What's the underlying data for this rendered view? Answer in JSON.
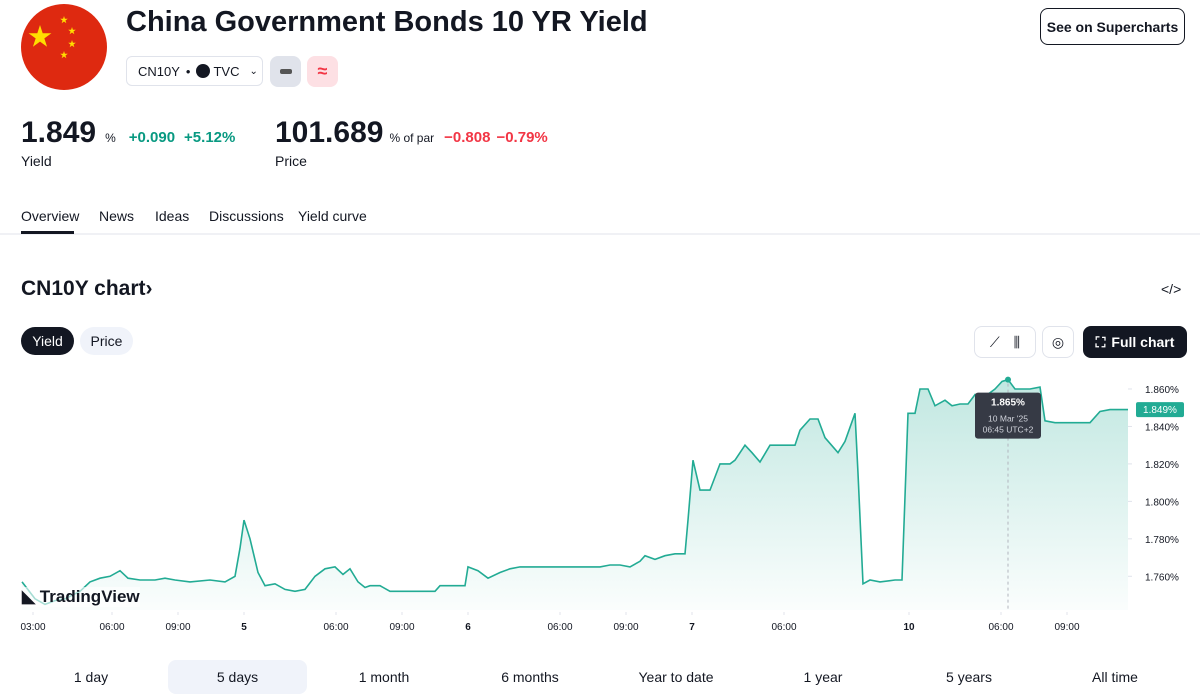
{
  "header": {
    "title": "China Government Bonds 10 YR Yield",
    "symbol": "CN10Y",
    "separator": "•",
    "exchange": "TVC",
    "button": "See on Supercharts"
  },
  "quotes": [
    {
      "value": "1.849",
      "unit": "%",
      "change": "+0.090",
      "change_percent": "+5.12%",
      "label": "Yield"
    },
    {
      "value": "101.689",
      "unit": "% of par",
      "change": "−0.808",
      "change_percent": "−0.79%",
      "label": "Price"
    }
  ],
  "tabs": [
    "Overview",
    "News",
    "Ideas",
    "Discussions",
    "Yield curve"
  ],
  "chart_section": {
    "title": "CN10Y chart",
    "arrow": "›",
    "toggles": [
      "Yield",
      "Price"
    ],
    "full_chart": "Full chart",
    "watermark": "TradingView"
  },
  "chart_data": {
    "type": "line",
    "color": "#22ab94",
    "x": [
      0,
      1.3,
      2.3,
      3.3,
      4.3,
      5.8,
      6.8,
      7.8,
      8.8,
      9.8,
      10.6,
      11.8,
      13.3,
      14.3,
      15.3,
      16.8,
      18.8,
      20.3,
      21.3,
      21.8,
      22.2,
      22.8,
      23.6,
      24.3,
      25.3,
      26.3,
      27.3,
      28.3,
      29.3,
      30.3,
      31.3,
      32.1,
      32.8,
      33.6,
      34.3,
      34.8,
      35.8,
      36.8,
      37.8,
      39.8,
      41.3,
      41.8,
      43.3,
      44.3,
      44.6,
      45.6,
      46.6,
      47.8,
      48.8,
      49.8,
      51.8,
      53.8,
      55.8,
      57.8,
      58.8,
      59.8,
      60.8,
      61.8,
      62.3,
      63.3,
      64.3,
      65.3,
      66.3,
      66.6,
      67.1,
      67.8,
      68.8,
      69.8,
      70.8,
      71.3,
      72.3,
      73,
      73.8,
      74.8,
      75.8,
      77.3,
      77.8,
      78.8,
      79.6,
      80.3,
      81.6,
      82.3,
      83.3,
      83.6,
      84.1,
      84.8,
      85.8,
      87.3,
      88,
      88.6,
      89.3,
      89.8,
      90.6,
      91.3,
      92.3,
      93,
      93.8,
      94.6,
      95.3,
      95.8,
      96.3,
      97.3,
      98,
      98.6,
      99.3,
      100.8,
      101.8,
      102.3,
      103.3,
      105.3,
      106.8,
      107.8,
      108.8,
      110.6
    ],
    "values": [
      1.757,
      1.748,
      1.745,
      1.747,
      1.748,
      1.752,
      1.757,
      1.759,
      1.76,
      1.763,
      1.759,
      1.758,
      1.758,
      1.759,
      1.758,
      1.757,
      1.758,
      1.757,
      1.76,
      1.775,
      1.79,
      1.78,
      1.762,
      1.755,
      1.756,
      1.753,
      1.752,
      1.753,
      1.76,
      1.764,
      1.765,
      1.761,
      1.764,
      1.757,
      1.754,
      1.755,
      1.755,
      1.752,
      1.752,
      1.752,
      1.752,
      1.755,
      1.755,
      1.755,
      1.765,
      1.763,
      1.759,
      1.762,
      1.764,
      1.765,
      1.765,
      1.765,
      1.765,
      1.765,
      1.766,
      1.766,
      1.765,
      1.768,
      1.771,
      1.769,
      1.771,
      1.772,
      1.772,
      1.79,
      1.822,
      1.806,
      1.806,
      1.82,
      1.82,
      1.822,
      1.83,
      1.826,
      1.821,
      1.83,
      1.83,
      1.83,
      1.838,
      1.844,
      1.844,
      1.834,
      1.826,
      1.832,
      1.847,
      1.815,
      1.756,
      1.758,
      1.757,
      1.758,
      1.758,
      1.847,
      1.847,
      1.86,
      1.86,
      1.851,
      1.854,
      1.851,
      1.852,
      1.852,
      1.857,
      1.853,
      1.856,
      1.86,
      1.864,
      1.865,
      1.86,
      1.86,
      1.861,
      1.843,
      1.842,
      1.842,
      1.842,
      1.848,
      1.849,
      1.849
    ],
    "xlim": [
      0,
      110.6
    ],
    "ylim": [
      1.742,
      1.868
    ],
    "xticks": [
      {
        "value": 1.1,
        "label": "03:00"
      },
      {
        "value": 9,
        "label": "06:00"
      },
      {
        "value": 15.6,
        "label": "09:00"
      },
      {
        "value": 22.2,
        "label": "5"
      },
      {
        "value": 31.4,
        "label": "06:00"
      },
      {
        "value": 38,
        "label": "09:00"
      },
      {
        "value": 44.6,
        "label": "6"
      },
      {
        "value": 53.8,
        "label": "06:00"
      },
      {
        "value": 60.4,
        "label": "09:00"
      },
      {
        "value": 67,
        "label": "7"
      },
      {
        "value": 76.2,
        "label": "06:00"
      },
      {
        "value": 88.7,
        "label": "10"
      },
      {
        "value": 97.9,
        "label": "06:00"
      },
      {
        "value": 104.5,
        "label": "09:00"
      }
    ],
    "yticks": [
      {
        "value": 1.76,
        "label": "1.760%"
      },
      {
        "value": 1.78,
        "label": "1.780%"
      },
      {
        "value": 1.8,
        "label": "1.800%"
      },
      {
        "value": 1.82,
        "label": "1.820%"
      },
      {
        "value": 1.84,
        "label": "1.840%"
      },
      {
        "value": 1.86,
        "label": "1.860%"
      }
    ],
    "last_value": {
      "value": 1.849,
      "label": "1.849%"
    },
    "tooltip": {
      "x": 98.6,
      "value": 1.865,
      "label": "1.865%",
      "date": "10 Mar '25",
      "time": "06:45 UTC+2"
    }
  },
  "ranges": [
    "1 day",
    "5 days",
    "1 month",
    "6 months",
    "Year to date",
    "1 year",
    "5 years",
    "All time"
  ]
}
